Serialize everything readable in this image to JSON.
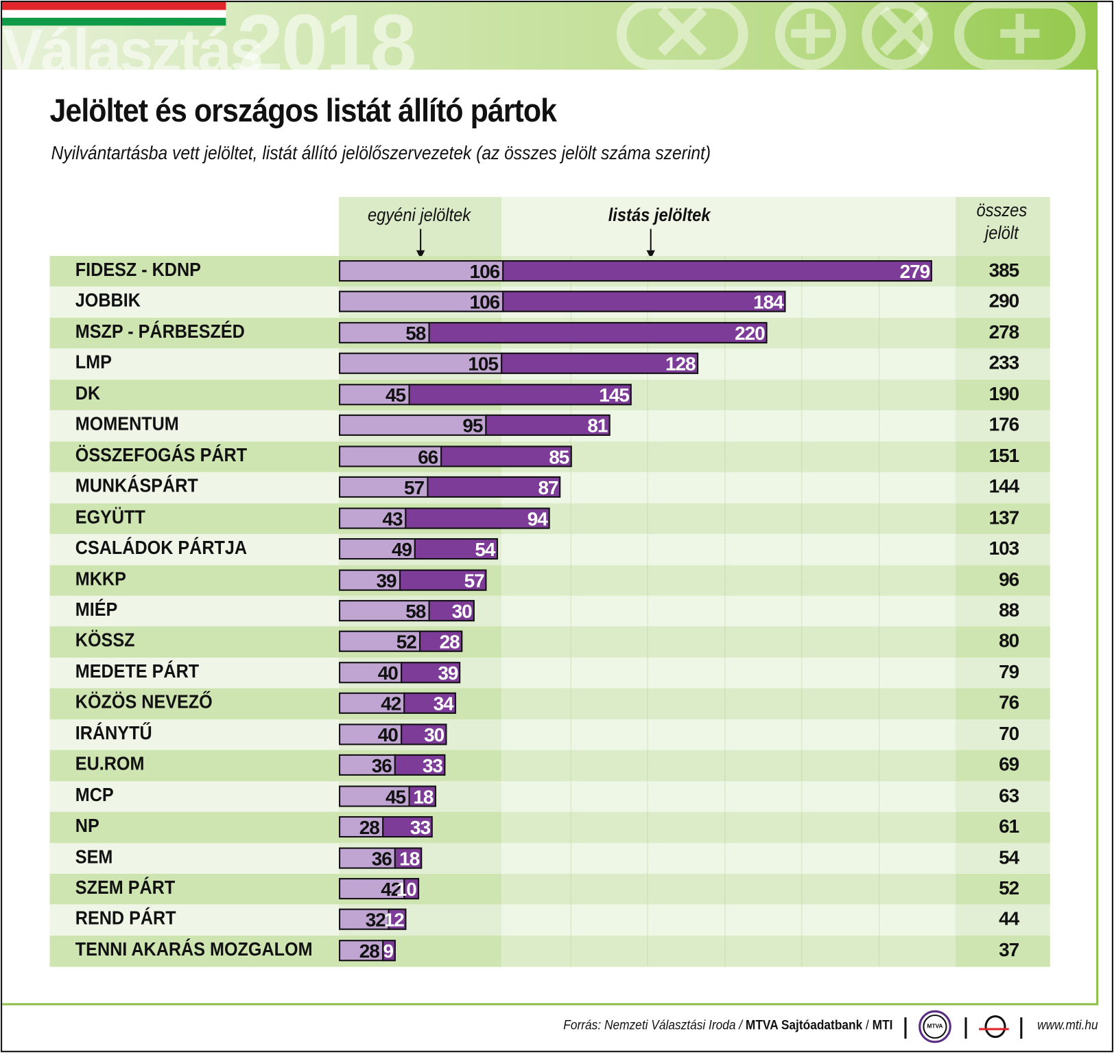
{
  "header": {
    "watermark_text": "Választás",
    "watermark_year": "2018",
    "symbols": [
      "x-in-circle-icon",
      "plus-in-circle-icon",
      "x-in-circle-icon",
      "plus-in-circle-icon"
    ],
    "flag_colors": [
      "#e0262b",
      "#ffffff",
      "#0f9a48"
    ]
  },
  "chart_data": {
    "type": "bar",
    "stacked": true,
    "orientation": "horizontal",
    "title": "Jelöltet és országos listát állító pártok",
    "subtitle": "Nyilvántartásba vett jelöltet, listát állító jelölőszervezetek (az összes jelölt száma szerint)",
    "series_labels": {
      "individual": "egyéni jelöltek",
      "list": "listás jelöltek",
      "total": "összes jelölt"
    },
    "total_label_line1": "összes",
    "total_label_line2": "jelölt",
    "categories": [
      "FIDESZ  -  KDNP",
      "JOBBIK",
      "MSZP  -  PÁRBESZÉD",
      "LMP",
      "DK",
      "MOMENTUM",
      "ÖSSZEFOGÁS PÁRT",
      "MUNKÁSPÁRT",
      "EGYÜTT",
      "CSALÁDOK PÁRTJA",
      "MKKP",
      "MIÉP",
      "KÖSSZ",
      "MEDETE PÁRT",
      "KÖZÖS NEVEZŐ",
      "IRÁNYTŰ",
      "EU.ROM",
      "MCP",
      "NP",
      "SEM",
      "SZEM PÁRT",
      "REND PÁRT",
      "TENNI AKARÁS MOZGALOM"
    ],
    "series": [
      {
        "name": "egyéni jelöltek",
        "color": "#c0a5d3",
        "values": [
          106,
          106,
          58,
          105,
          45,
          95,
          66,
          57,
          43,
          49,
          39,
          58,
          52,
          40,
          42,
          40,
          36,
          45,
          28,
          36,
          42,
          32,
          28
        ]
      },
      {
        "name": "listás jelöltek",
        "color": "#7d3c98",
        "values": [
          279,
          184,
          220,
          128,
          145,
          81,
          85,
          87,
          94,
          54,
          57,
          30,
          28,
          39,
          34,
          30,
          33,
          18,
          33,
          18,
          10,
          12,
          9
        ]
      }
    ],
    "totals": [
      385,
      290,
      278,
      233,
      190,
      176,
      151,
      144,
      137,
      103,
      96,
      88,
      80,
      79,
      76,
      70,
      69,
      63,
      61,
      54,
      52,
      44,
      37
    ],
    "xlim": [
      0,
      400
    ],
    "grid": true
  },
  "footer": {
    "source_prefix": "Forrás: Nemzeti Választási Iroda / ",
    "source_bold": "MTVA Sajtóadatbank",
    "source_sep": " / ",
    "source_mti": "MTI",
    "mtva_logo_text": "MTVA",
    "url": "www.mti.hu"
  }
}
